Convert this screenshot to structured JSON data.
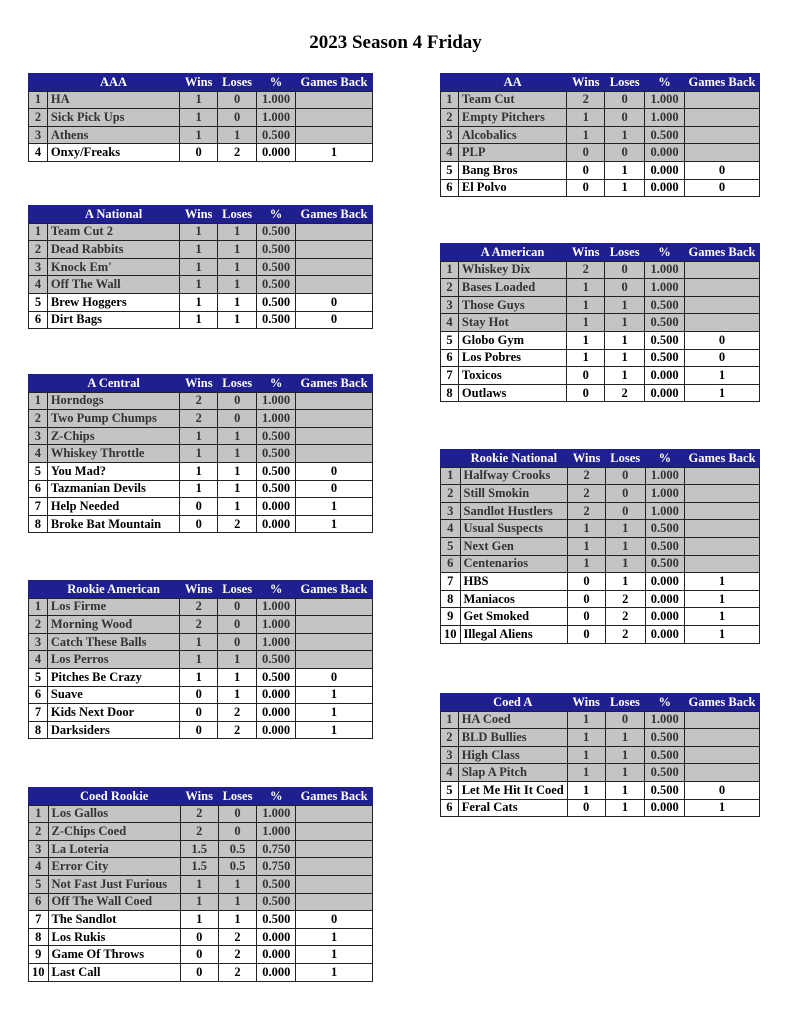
{
  "title": "2023 Season 4 Friday",
  "columns": {
    "wins": "Wins",
    "loses": "Loses",
    "pct": "%",
    "gb": "Games Back"
  },
  "colors": {
    "header_bg": "#1f1f8f",
    "header_text": "#ffffff",
    "gray_row": "#c4c4c4",
    "white_row": "#ffffff"
  },
  "tables": [
    {
      "id": "aaa",
      "side": "left",
      "name": "AAA",
      "rows": [
        [
          "1",
          "HA",
          "1",
          "0",
          "1.000",
          ""
        ],
        [
          "2",
          "Sick Pick Ups",
          "1",
          "0",
          "1.000",
          ""
        ],
        [
          "3",
          "Athens",
          "1",
          "1",
          "0.500",
          ""
        ],
        [
          "4",
          "Onxy/Freaks",
          "0",
          "2",
          "0.000",
          "1"
        ]
      ]
    },
    {
      "id": "a-national",
      "side": "left",
      "name": "A National",
      "rows": [
        [
          "1",
          "Team Cut 2",
          "1",
          "1",
          "0.500",
          ""
        ],
        [
          "2",
          "Dead Rabbits",
          "1",
          "1",
          "0.500",
          ""
        ],
        [
          "3",
          "Knock Em'",
          "1",
          "1",
          "0.500",
          ""
        ],
        [
          "4",
          "Off The Wall",
          "1",
          "1",
          "0.500",
          ""
        ],
        [
          "5",
          "Brew Hoggers",
          "1",
          "1",
          "0.500",
          "0"
        ],
        [
          "6",
          "Dirt Bags",
          "1",
          "1",
          "0.500",
          "0"
        ]
      ]
    },
    {
      "id": "a-central",
      "side": "left",
      "name": "A Central",
      "rows": [
        [
          "1",
          "Horndogs",
          "2",
          "0",
          "1.000",
          ""
        ],
        [
          "2",
          "Two Pump Chumps",
          "2",
          "0",
          "1.000",
          ""
        ],
        [
          "3",
          "Z-Chips",
          "1",
          "1",
          "0.500",
          ""
        ],
        [
          "4",
          "Whiskey Throttle",
          "1",
          "1",
          "0.500",
          ""
        ],
        [
          "5",
          "You Mad?",
          "1",
          "1",
          "0.500",
          "0"
        ],
        [
          "6",
          "Tazmanian Devils",
          "1",
          "1",
          "0.500",
          "0"
        ],
        [
          "7",
          "Help Needed",
          "0",
          "1",
          "0.000",
          "1"
        ],
        [
          "8",
          "Broke Bat Mountain",
          "0",
          "2",
          "0.000",
          "1"
        ]
      ]
    },
    {
      "id": "rookie-american",
      "side": "left",
      "name": "Rookie American",
      "rows": [
        [
          "1",
          "Los Firme",
          "2",
          "0",
          "1.000",
          ""
        ],
        [
          "2",
          "Morning Wood",
          "2",
          "0",
          "1.000",
          ""
        ],
        [
          "3",
          "Catch These Balls",
          "1",
          "0",
          "1.000",
          ""
        ],
        [
          "4",
          "Los Perros",
          "1",
          "1",
          "0.500",
          ""
        ],
        [
          "5",
          "Pitches Be Crazy",
          "1",
          "1",
          "0.500",
          "0"
        ],
        [
          "6",
          "Suave",
          "0",
          "1",
          "0.000",
          "1"
        ],
        [
          "7",
          "Kids Next Door",
          "0",
          "2",
          "0.000",
          "1"
        ],
        [
          "8",
          "Darksiders",
          "0",
          "2",
          "0.000",
          "1"
        ]
      ]
    },
    {
      "id": "coed-rookie",
      "side": "left",
      "name": "Coed Rookie",
      "rows": [
        [
          "1",
          "Los Gallos",
          "2",
          "0",
          "1.000",
          ""
        ],
        [
          "2",
          "Z-Chips Coed",
          "2",
          "0",
          "1.000",
          ""
        ],
        [
          "3",
          "La Loteria",
          "1.5",
          "0.5",
          "0.750",
          ""
        ],
        [
          "4",
          "Error City",
          "1.5",
          "0.5",
          "0.750",
          ""
        ],
        [
          "5",
          "Not Fast Just Furious",
          "1",
          "1",
          "0.500",
          ""
        ],
        [
          "6",
          "Off The Wall Coed",
          "1",
          "1",
          "0.500",
          ""
        ],
        [
          "7",
          "The Sandlot",
          "1",
          "1",
          "0.500",
          "0"
        ],
        [
          "8",
          "Los Rukis",
          "0",
          "2",
          "0.000",
          "1"
        ],
        [
          "9",
          "Game Of Throws",
          "0",
          "2",
          "0.000",
          "1"
        ],
        [
          "10",
          "Last Call",
          "0",
          "2",
          "0.000",
          "1"
        ]
      ]
    },
    {
      "id": "aa",
      "side": "right",
      "name": "AA",
      "rows": [
        [
          "1",
          "Team Cut",
          "2",
          "0",
          "1.000",
          ""
        ],
        [
          "2",
          "Empty Pitchers",
          "1",
          "0",
          "1.000",
          ""
        ],
        [
          "3",
          "Alcobalics",
          "1",
          "1",
          "0.500",
          ""
        ],
        [
          "4",
          "PLP",
          "0",
          "0",
          "0.000",
          ""
        ],
        [
          "5",
          "Bang Bros",
          "0",
          "1",
          "0.000",
          "0"
        ],
        [
          "6",
          "El Polvo",
          "0",
          "1",
          "0.000",
          "0"
        ]
      ]
    },
    {
      "id": "a-american",
      "side": "right",
      "name": "A American",
      "rows": [
        [
          "1",
          "Whiskey Dix",
          "2",
          "0",
          "1.000",
          ""
        ],
        [
          "2",
          "Bases Loaded",
          "1",
          "0",
          "1.000",
          ""
        ],
        [
          "3",
          "Those Guys",
          "1",
          "1",
          "0.500",
          ""
        ],
        [
          "4",
          "Stay Hot",
          "1",
          "1",
          "0.500",
          ""
        ],
        [
          "5",
          "Globo Gym",
          "1",
          "1",
          "0.500",
          "0"
        ],
        [
          "6",
          "Los Pobres",
          "1",
          "1",
          "0.500",
          "0"
        ],
        [
          "7",
          "Toxicos",
          "0",
          "1",
          "0.000",
          "1"
        ],
        [
          "8",
          "Outlaws",
          "0",
          "2",
          "0.000",
          "1"
        ]
      ]
    },
    {
      "id": "rookie-national",
      "side": "right",
      "name": "Rookie National",
      "rows": [
        [
          "1",
          "Halfway Crooks",
          "2",
          "0",
          "1.000",
          ""
        ],
        [
          "2",
          "Still Smokin",
          "2",
          "0",
          "1.000",
          ""
        ],
        [
          "3",
          "Sandlot Hustlers",
          "2",
          "0",
          "1.000",
          ""
        ],
        [
          "4",
          "Usual Suspects",
          "1",
          "1",
          "0.500",
          ""
        ],
        [
          "5",
          "Next Gen",
          "1",
          "1",
          "0.500",
          ""
        ],
        [
          "6",
          "Centenarios",
          "1",
          "1",
          "0.500",
          ""
        ],
        [
          "7",
          "HBS",
          "0",
          "1",
          "0.000",
          "1"
        ],
        [
          "8",
          "Maniacos",
          "0",
          "2",
          "0.000",
          "1"
        ],
        [
          "9",
          "Get Smoked",
          "0",
          "2",
          "0.000",
          "1"
        ],
        [
          "10",
          "Illegal Aliens",
          "0",
          "2",
          "0.000",
          "1"
        ]
      ]
    },
    {
      "id": "coed-a",
      "side": "right",
      "name": "Coed A",
      "rows": [
        [
          "1",
          "HA Coed",
          "1",
          "0",
          "1.000",
          ""
        ],
        [
          "2",
          "BLD Bullies",
          "1",
          "1",
          "0.500",
          ""
        ],
        [
          "3",
          "High Class",
          "1",
          "1",
          "0.500",
          ""
        ],
        [
          "4",
          "Slap A Pitch",
          "1",
          "1",
          "0.500",
          ""
        ],
        [
          "5",
          "Let Me Hit It Coed",
          "1",
          "1",
          "0.500",
          "0"
        ],
        [
          "6",
          "Feral Cats",
          "0",
          "1",
          "0.000",
          "1"
        ]
      ]
    }
  ]
}
